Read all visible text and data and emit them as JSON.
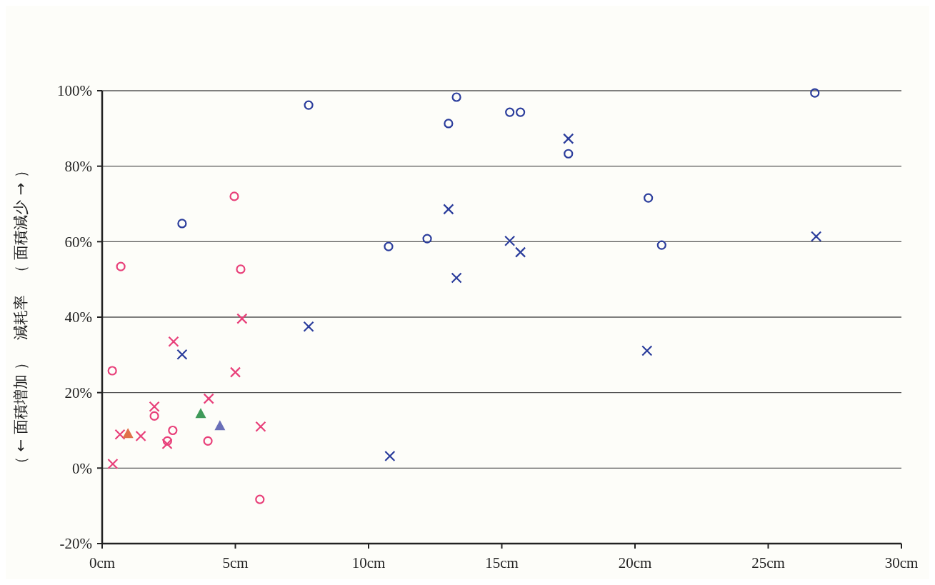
{
  "chart_data": {
    "type": "scatter",
    "ylabel": "（ ← 面積増加 ）　減耗率　（ 面積減少 → ）",
    "xlim": [
      0,
      30
    ],
    "xticks": [
      {
        "value": 0,
        "label": "0cm"
      },
      {
        "value": 5,
        "label": "5cm"
      },
      {
        "value": 10,
        "label": "10cm"
      },
      {
        "value": 15,
        "label": "15cm"
      },
      {
        "value": 20,
        "label": "20cm"
      },
      {
        "value": 25,
        "label": "25cm"
      },
      {
        "value": 30,
        "label": "30cm"
      }
    ],
    "ylim": [
      -20,
      100
    ],
    "yticks": [
      {
        "value": -20,
        "label": "-20%"
      },
      {
        "value": 0,
        "label": "0%"
      },
      {
        "value": 20,
        "label": "20%"
      },
      {
        "value": 40,
        "label": "40%"
      },
      {
        "value": 60,
        "label": "60%"
      },
      {
        "value": 80,
        "label": "80%"
      },
      {
        "value": 100,
        "label": "100%"
      }
    ],
    "grid": "y",
    "series": [
      {
        "color": "#2b3d9c",
        "marker": "circle",
        "x": [
          7.75,
          13.3,
          13.0,
          15.3,
          15.7,
          17.5,
          20.5,
          26.75,
          3.0,
          10.75,
          12.2,
          21.0
        ],
        "values": [
          96.2,
          98.3,
          91.3,
          94.3,
          94.3,
          83.3,
          71.6,
          99.4,
          64.8,
          58.7,
          60.8,
          59.1
        ]
      },
      {
        "color": "#2b3d9c",
        "marker": "cross",
        "x": [
          17.5,
          13.0,
          13.3,
          15.3,
          15.7,
          26.8,
          7.75,
          20.45,
          3.0,
          10.8
        ],
        "values": [
          87.3,
          68.6,
          50.4,
          60.2,
          57.2,
          61.4,
          37.5,
          31.1,
          30.1,
          3.2
        ]
      },
      {
        "color": "#e8407a",
        "marker": "circle",
        "x": [
          0.7,
          5.2,
          0.38,
          1.96,
          2.65,
          2.45,
          3.97,
          5.92,
          4.96
        ],
        "values": [
          53.4,
          52.7,
          25.8,
          13.8,
          10.0,
          7.2,
          7.2,
          -8.3,
          72.0
        ]
      },
      {
        "color": "#e8407a",
        "marker": "cross",
        "x": [
          5.25,
          2.68,
          5.0,
          4.0,
          1.96,
          5.95,
          0.67,
          1.45,
          2.44,
          0.4
        ],
        "values": [
          39.6,
          33.5,
          25.4,
          18.4,
          16.3,
          11.0,
          8.9,
          8.5,
          6.4,
          1.1
        ]
      },
      {
        "color": "#e0704a",
        "marker": "triangle",
        "x": [
          0.97
        ],
        "values": [
          9.1
        ]
      },
      {
        "color": "#3f9a5a",
        "marker": "triangle",
        "x": [
          3.7
        ],
        "values": [
          14.4
        ]
      },
      {
        "color": "#6a6fb8",
        "marker": "triangle",
        "x": [
          4.42
        ],
        "values": [
          11.2
        ]
      }
    ]
  }
}
